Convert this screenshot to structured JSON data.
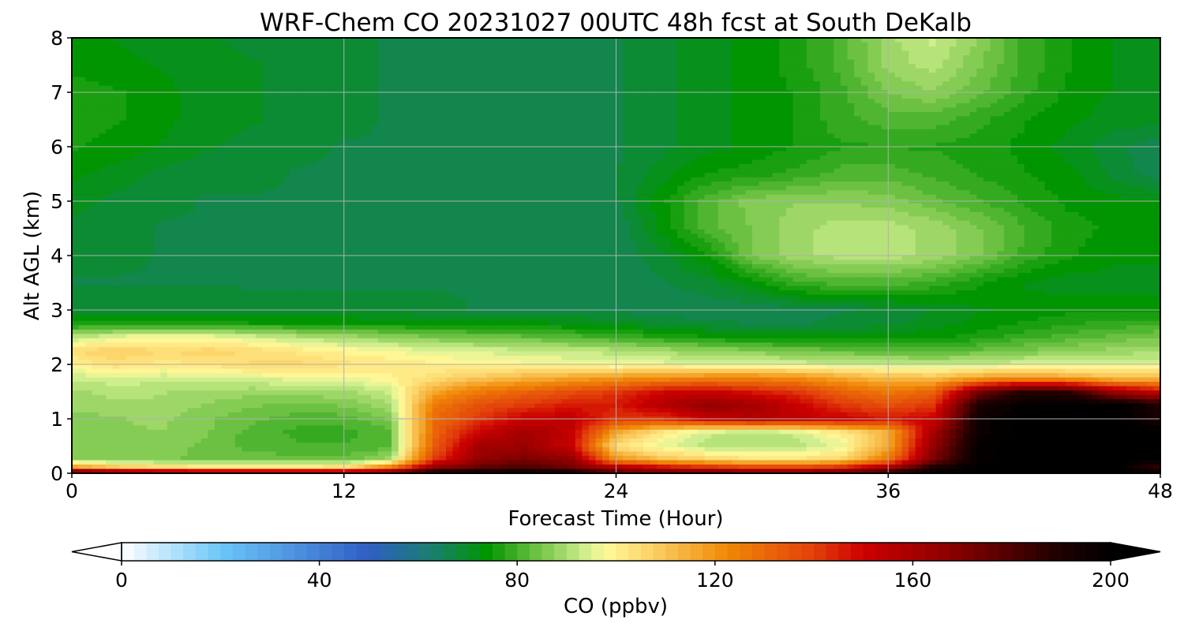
{
  "chart_data": {
    "type": "heatmap",
    "title": "WRF-Chem CO  20231027 00UTC 48h fcst at South DeKalb",
    "xlabel": "Forecast Time (Hour)",
    "ylabel": "Alt AGL (km)",
    "xlim": [
      0,
      48
    ],
    "ylim": [
      0,
      8
    ],
    "xticks": [
      0,
      12,
      24,
      36,
      48
    ],
    "yticks": [
      0,
      1,
      2,
      3,
      4,
      5,
      6,
      7,
      8
    ],
    "grid": true,
    "colorbar": {
      "label": "CO  (ppbv)",
      "range": [
        0,
        200
      ],
      "ticks": [
        0,
        40,
        80,
        120,
        160,
        200
      ],
      "extend": "both",
      "stops": [
        {
          "value": 0,
          "color": "#ffffff"
        },
        {
          "value": 20,
          "color": "#6cc6f8"
        },
        {
          "value": 50,
          "color": "#2f5ec4"
        },
        {
          "value": 63,
          "color": "#1a7f6c"
        },
        {
          "value": 74,
          "color": "#009500"
        },
        {
          "value": 84,
          "color": "#6fc244"
        },
        {
          "value": 94,
          "color": "#d2ef90"
        },
        {
          "value": 98,
          "color": "#fff99a"
        },
        {
          "value": 108,
          "color": "#fbce62"
        },
        {
          "value": 122,
          "color": "#f08a08"
        },
        {
          "value": 140,
          "color": "#e2400a"
        },
        {
          "value": 150,
          "color": "#cc0000"
        },
        {
          "value": 168,
          "color": "#8a0000"
        },
        {
          "value": 188,
          "color": "#250000"
        },
        {
          "value": 200,
          "color": "#000000"
        }
      ]
    },
    "grid_data": {
      "x": [
        0,
        2,
        4,
        6,
        8,
        10,
        12,
        14,
        16,
        18,
        20,
        22,
        24,
        26,
        28,
        30,
        32,
        34,
        36,
        38,
        40,
        42,
        44,
        46,
        48
      ],
      "y": [
        0,
        0.1,
        0.25,
        0.5,
        0.75,
        1,
        1.25,
        1.5,
        1.75,
        2,
        2.25,
        2.5,
        2.75,
        3,
        3.5,
        4,
        4.5,
        5,
        5.5,
        6,
        6.5,
        7,
        7.5,
        8
      ],
      "values": [
        [
          190,
          185,
          180,
          178,
          178,
          176,
          175,
          180,
          200,
          200,
          200,
          200,
          180,
          178,
          178,
          178,
          178,
          180,
          190,
          200,
          200,
          200,
          200,
          200,
          200
        ],
        [
          120,
          110,
          105,
          103,
          103,
          103,
          105,
          125,
          165,
          175,
          180,
          172,
          160,
          150,
          145,
          140,
          140,
          145,
          160,
          190,
          200,
          200,
          200,
          200,
          180
        ],
        [
          85,
          84,
          84,
          83,
          83,
          82,
          82,
          88,
          140,
          165,
          170,
          165,
          120,
          110,
          105,
          102,
          102,
          105,
          125,
          170,
          198,
          200,
          200,
          200,
          200
        ],
        [
          84,
          84,
          85,
          83,
          80,
          79,
          79,
          80,
          132,
          160,
          162,
          150,
          102,
          95,
          90,
          90,
          90,
          95,
          115,
          165,
          198,
          200,
          200,
          200,
          200
        ],
        [
          86,
          86,
          86,
          84,
          80,
          78,
          78,
          80,
          130,
          150,
          160,
          152,
          115,
          100,
          92,
          90,
          92,
          100,
          112,
          160,
          195,
          200,
          200,
          200,
          200
        ],
        [
          85,
          86,
          87,
          84,
          82,
          80,
          80,
          84,
          128,
          140,
          150,
          152,
          140,
          140,
          150,
          155,
          152,
          150,
          145,
          150,
          195,
          200,
          200,
          200,
          190
        ],
        [
          87,
          88,
          88,
          86,
          84,
          83,
          84,
          88,
          125,
          135,
          140,
          145,
          145,
          155,
          165,
          160,
          150,
          140,
          135,
          140,
          190,
          198,
          200,
          200,
          190
        ],
        [
          88,
          90,
          89,
          88,
          87,
          88,
          88,
          92,
          115,
          125,
          130,
          135,
          140,
          148,
          150,
          145,
          140,
          130,
          125,
          130,
          170,
          188,
          185,
          160,
          150
        ],
        [
          92,
          93,
          92,
          93,
          94,
          95,
          96,
          98,
          103,
          108,
          112,
          115,
          118,
          120,
          122,
          122,
          120,
          115,
          110,
          110,
          116,
          118,
          115,
          110,
          110
        ],
        [
          98,
          103,
          100,
          102,
          104,
          105,
          102,
          101,
          99,
          98,
          97,
          96,
          95,
          95,
          94,
          94,
          93,
          92,
          92,
          91,
          92,
          93,
          93,
          94,
          94
        ],
        [
          104,
          106,
          104,
          105,
          103,
          100,
          98,
          96,
          94,
          93,
          92,
          91,
          90,
          88,
          86,
          85,
          83,
          82,
          81,
          80,
          82,
          84,
          86,
          87,
          88
        ],
        [
          90,
          95,
          97,
          96,
          93,
          90,
          88,
          86,
          84,
          83,
          82,
          80,
          78,
          76,
          74,
          72,
          72,
          72,
          72,
          73,
          75,
          78,
          80,
          82,
          84
        ],
        [
          74,
          74,
          75,
          75,
          74,
          74,
          74,
          73,
          72,
          72,
          72,
          71,
          70,
          68,
          67,
          66,
          66,
          67,
          68,
          70,
          72,
          74,
          76,
          77,
          78
        ],
        [
          68,
          68,
          68,
          68,
          67,
          67,
          67,
          67,
          67,
          66,
          66,
          66,
          65,
          64,
          64,
          64,
          65,
          66,
          67,
          69,
          71,
          72,
          73,
          73,
          73
        ],
        [
          66,
          66,
          66,
          66,
          66,
          66,
          66,
          66,
          66,
          66,
          66,
          65,
          64,
          66,
          68,
          72,
          78,
          80,
          80,
          78,
          74,
          71,
          70,
          70,
          70
        ],
        [
          67,
          67,
          66,
          66,
          66,
          66,
          66,
          66,
          65,
          66,
          66,
          65,
          64,
          68,
          73,
          84,
          88,
          90,
          90,
          88,
          84,
          78,
          74,
          72,
          72
        ],
        [
          68,
          67,
          66,
          66,
          66,
          66,
          66,
          66,
          66,
          66,
          66,
          65,
          64,
          72,
          80,
          84,
          88,
          90,
          90,
          88,
          84,
          79,
          75,
          73,
          72
        ],
        [
          70,
          68,
          67,
          66,
          66,
          66,
          66,
          66,
          66,
          66,
          66,
          65,
          66,
          73,
          80,
          85,
          86,
          86,
          85,
          82,
          79,
          76,
          73,
          72,
          72
        ],
        [
          72,
          70,
          68,
          67,
          67,
          66,
          66,
          66,
          66,
          66,
          66,
          66,
          66,
          70,
          74,
          75,
          77,
          80,
          80,
          78,
          76,
          74,
          72,
          68,
          64
        ],
        [
          74,
          73,
          71,
          69,
          68,
          67,
          66,
          66,
          66,
          66,
          66,
          66,
          66,
          68,
          70,
          72,
          74,
          76,
          76,
          76,
          75,
          73,
          70,
          67,
          64
        ],
        [
          75,
          74,
          72,
          70,
          69,
          68,
          67,
          66,
          66,
          66,
          66,
          66,
          66,
          68,
          70,
          72,
          74,
          78,
          80,
          80,
          77,
          74,
          72,
          70,
          70
        ],
        [
          75,
          74,
          72,
          70,
          69,
          68,
          67,
          66,
          66,
          66,
          66,
          66,
          66,
          68,
          70,
          72,
          74,
          78,
          84,
          86,
          82,
          77,
          73,
          71,
          70
        ],
        [
          73,
          72,
          71,
          70,
          69,
          68,
          67,
          66,
          66,
          66,
          66,
          66,
          66,
          68,
          70,
          72,
          75,
          80,
          87,
          90,
          84,
          78,
          74,
          71,
          70
        ],
        [
          72,
          71,
          70,
          69,
          68,
          67,
          67,
          66,
          66,
          66,
          66,
          66,
          66,
          68,
          70,
          72,
          75,
          80,
          88,
          92,
          86,
          78,
          74,
          71,
          70
        ]
      ]
    }
  }
}
